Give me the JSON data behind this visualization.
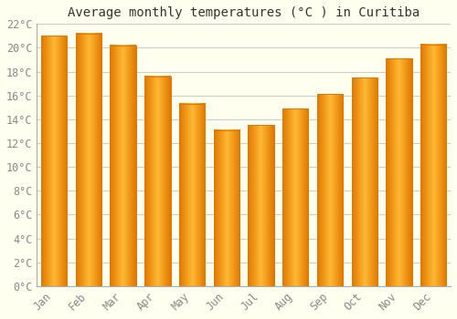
{
  "title": "Average monthly temperatures (°C ) in Curitiba",
  "months": [
    "Jan",
    "Feb",
    "Mar",
    "Apr",
    "May",
    "Jun",
    "Jul",
    "Aug",
    "Sep",
    "Oct",
    "Nov",
    "Dec"
  ],
  "temperatures": [
    21.0,
    21.2,
    20.2,
    17.6,
    15.3,
    13.1,
    13.5,
    14.9,
    16.1,
    17.5,
    19.1,
    20.3
  ],
  "bar_color_center": "#FFB833",
  "bar_color_edge": "#E07800",
  "background_color": "#FFFFF0",
  "grid_color": "#CCCCCC",
  "tick_label_color": "#888888",
  "title_color": "#333333",
  "spine_color": "#AAAAAA",
  "ylim": [
    0,
    22
  ],
  "ytick_step": 2,
  "bar_width": 0.75
}
